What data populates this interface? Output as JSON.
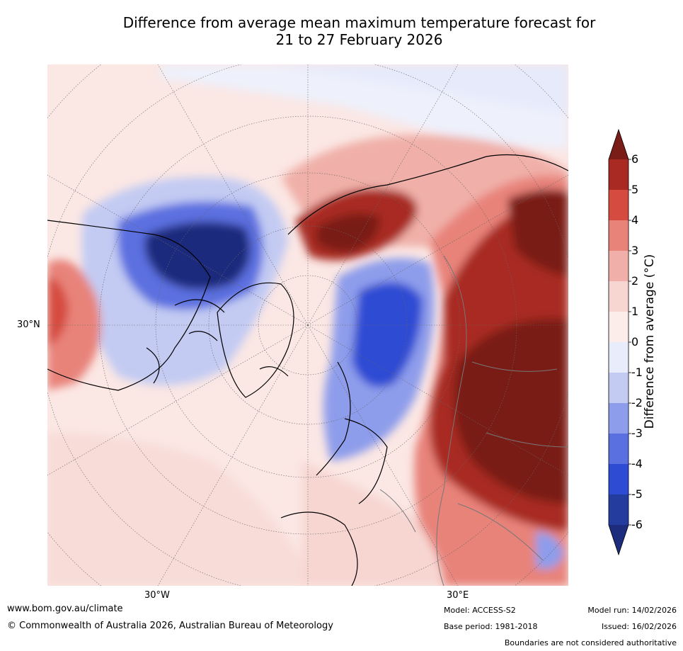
{
  "title": {
    "line1": "Difference from average mean maximum temperature forecast for",
    "line2": "21 to 27 February 2026"
  },
  "map": {
    "region": "Northern Hemisphere polar projection",
    "lat_label": "30°N",
    "lon_labels": [
      "30°W",
      "30°E"
    ]
  },
  "colorbar": {
    "label": "Difference from average (°C)",
    "ticks": [
      "6",
      "5",
      "4",
      "3",
      "2",
      "1",
      "0",
      "-1",
      "-2",
      "-3",
      "-4",
      "-5",
      "-6"
    ],
    "colors": [
      "#7a1c17",
      "#a82a22",
      "#d54b40",
      "#e8837a",
      "#f0b0a9",
      "#f7d6d2",
      "#fcecea",
      "#e8ecfb",
      "#c3cbf3",
      "#8e9deb",
      "#5b70e0",
      "#2e4bd3",
      "#253c9f",
      "#1d2c7d"
    ]
  },
  "footer": {
    "website": "www.bom.gov.au/climate",
    "copyright": "© Commonwealth of Australia 2026, Australian Bureau of Meteorology",
    "model": "Model: ACCESS-S2",
    "base_period": "Base period: 1981-2018",
    "model_run": "Model run: 14/02/2026",
    "issued": "Issued: 16/02/2026",
    "disclaimer": "Boundaries are not considered authoritative"
  }
}
